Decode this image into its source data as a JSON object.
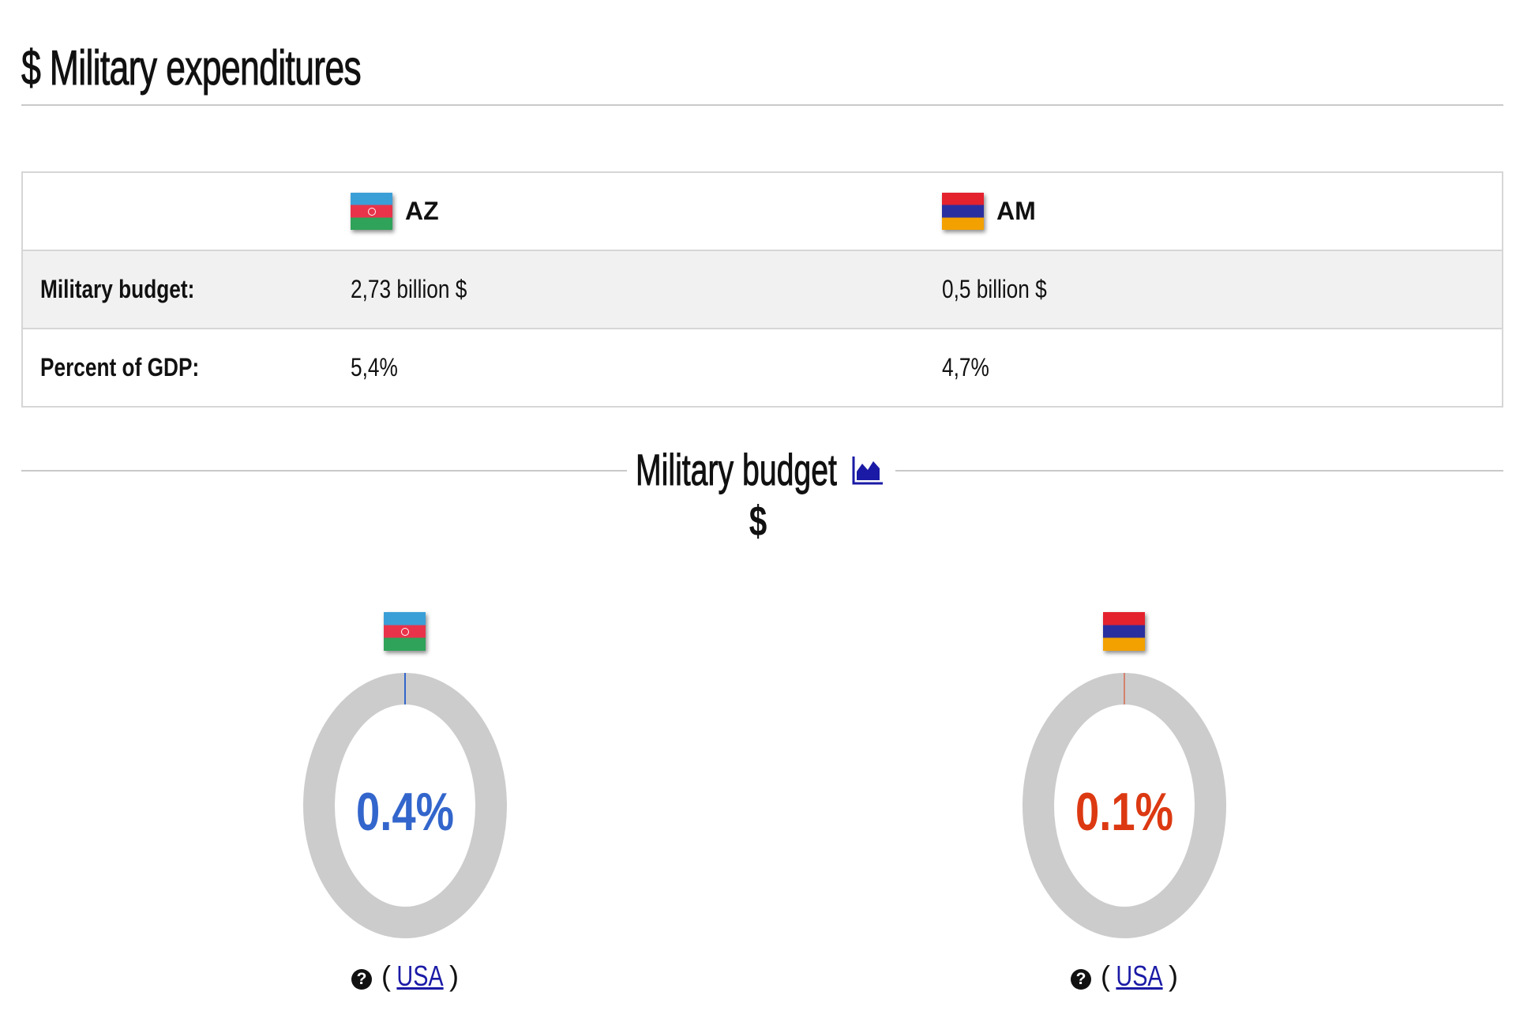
{
  "header": {
    "title": "$ Military expenditures"
  },
  "table": {
    "countries": [
      {
        "code": "AZ",
        "flag": "azerbaijan-flag"
      },
      {
        "code": "AM",
        "flag": "armenia-flag"
      }
    ],
    "rows": [
      {
        "label": "Military budget:",
        "values": [
          "2,73 billion $",
          "0,5 billion $"
        ]
      },
      {
        "label": "Percent of GDP:",
        "values": [
          "5,4%",
          "4,7%"
        ]
      }
    ]
  },
  "section": {
    "title": "Military budget",
    "icon": "area-chart-icon",
    "unit": "$"
  },
  "donuts": [
    {
      "percent_label": "0.4%",
      "fraction": 0.004,
      "color": "#3366cc",
      "source_prefix": "(",
      "source_link": "USA",
      "source_suffix": ")"
    },
    {
      "percent_label": "0.1%",
      "fraction": 0.001,
      "color": "#dc3912",
      "source_prefix": "(",
      "source_link": "USA",
      "source_suffix": ")"
    }
  ],
  "colors": {
    "ring": "#cccccc",
    "link": "#1a1aa6"
  }
}
